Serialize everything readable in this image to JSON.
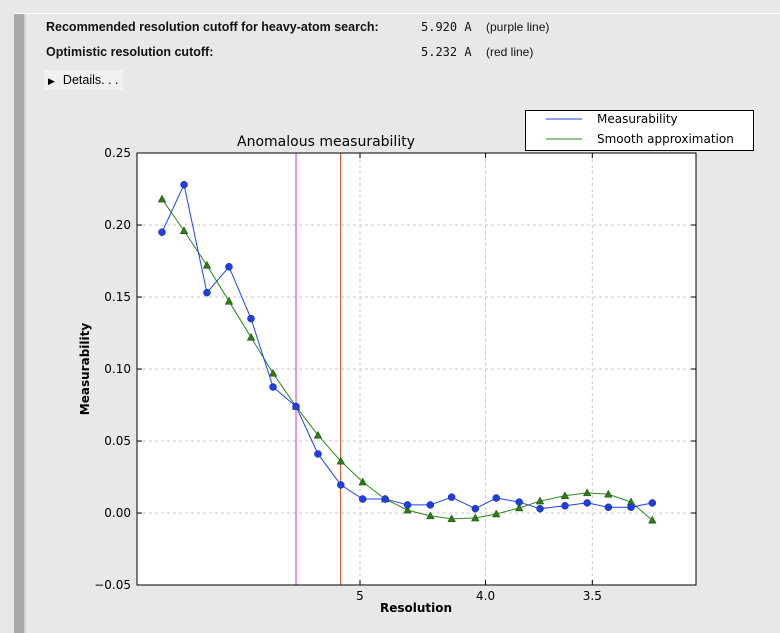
{
  "summary": {
    "recommended": {
      "label": "Recommended resolution cutoff for heavy-atom search:",
      "value": "5.920 A",
      "note": "(purple line)"
    },
    "optimistic": {
      "label": "Optimistic resolution cutoff:",
      "value": "5.232 A",
      "note": "(red line)"
    },
    "details_label": "Details. . ."
  },
  "chart_data": {
    "type": "line",
    "title": "Anomalous measurability",
    "xlabel": "Resolution",
    "ylabel": "Measurability",
    "x_scale": "reciprocal-squared (1/d^2)",
    "xticks": [
      {
        "value": 5,
        "label": "5"
      },
      {
        "value": 4.0,
        "label": "4.0"
      },
      {
        "value": 3.5,
        "label": "3.5"
      }
    ],
    "yticks": [
      "0.25",
      "0.20",
      "0.15",
      "0.10",
      "0.05",
      "0.00",
      "−0.05"
    ],
    "ylim": [
      -0.05,
      0.25
    ],
    "grid": true,
    "legend_position": "top-right (outside)",
    "x": [
      14.88,
      10.87,
      8.92,
      7.78,
      6.99,
      6.4,
      5.92,
      5.55,
      5.23,
      4.97,
      4.74,
      4.54,
      4.36,
      4.21,
      4.06,
      3.94,
      3.82,
      3.72,
      3.61,
      3.52,
      3.44,
      3.36,
      3.29
    ],
    "series": [
      {
        "name": "Measurability",
        "color": "#1f3fff",
        "marker": "circle",
        "values": [
          0.195,
          0.228,
          0.153,
          0.171,
          0.135,
          0.0875,
          0.074,
          0.041,
          0.0195,
          0.0097,
          0.0097,
          0.0056,
          0.0056,
          0.011,
          0.003,
          0.0104,
          0.0076,
          0.003,
          0.005,
          0.007,
          0.004,
          0.004,
          0.007
        ]
      },
      {
        "name": "Smooth approximation",
        "color": "#2a8a1a",
        "marker": "triangle",
        "values": [
          0.218,
          0.196,
          0.172,
          0.147,
          0.122,
          0.097,
          0.074,
          0.054,
          0.036,
          0.0215,
          0.0097,
          0.002,
          -0.002,
          -0.004,
          -0.0035,
          -0.0007,
          0.0035,
          0.0083,
          0.012,
          0.014,
          0.013,
          0.0076,
          -0.005
        ]
      }
    ],
    "vlines": [
      {
        "value": 5.92,
        "color": "#d030d0",
        "label": "purple line"
      },
      {
        "value": 5.232,
        "color": "#d04020",
        "label": "red line"
      }
    ]
  }
}
